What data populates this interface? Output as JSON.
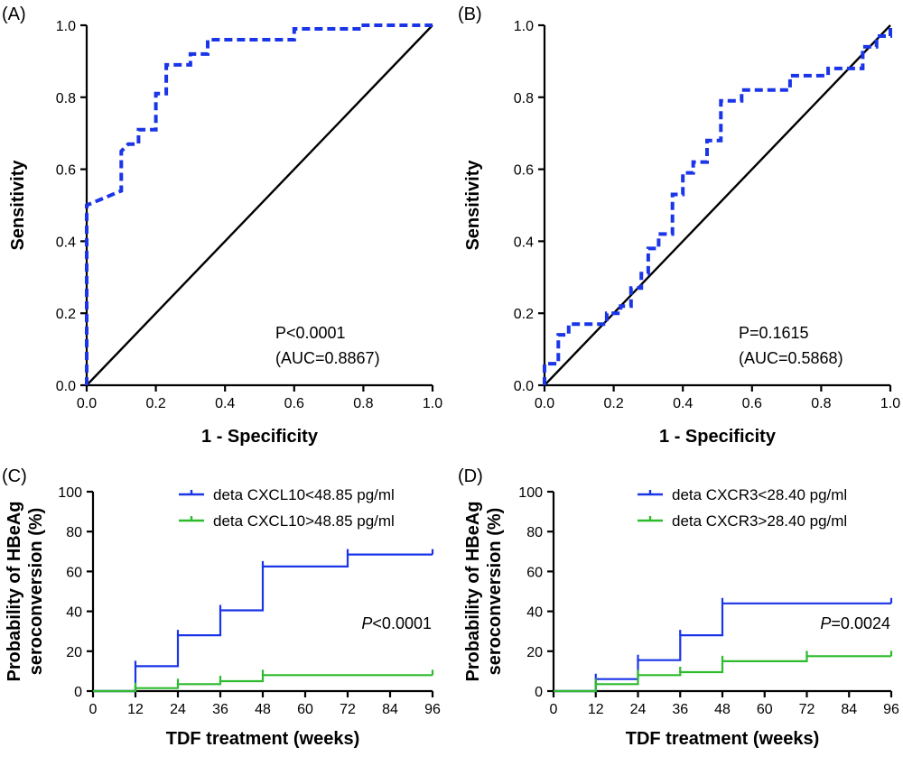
{
  "colors": {
    "roc_curve": "#1a35e8",
    "group_low": "#1a35e8",
    "group_high": "#2dbb2d",
    "axis": "#000000"
  },
  "chart_data": [
    {
      "panel": "(A)",
      "type": "line",
      "subtype": "roc",
      "xlabel": "1 - Specificity",
      "ylabel": "Sensitivity",
      "xlim": [
        0,
        1
      ],
      "ylim": [
        0,
        1
      ],
      "xticks": [
        "0.0",
        "0.2",
        "0.4",
        "0.6",
        "0.8",
        "1.0"
      ],
      "yticks": [
        "0.0",
        "0.2",
        "0.4",
        "0.6",
        "0.8",
        "1.0"
      ],
      "annotation": [
        "P<0.0001",
        "(AUC=0.8867)"
      ],
      "reference_line": [
        [
          0,
          0
        ],
        [
          1,
          1
        ]
      ],
      "points": [
        [
          0,
          0
        ],
        [
          0,
          0.5
        ],
        [
          0.1,
          0.54
        ],
        [
          0.1,
          0.65
        ],
        [
          0.12,
          0.67
        ],
        [
          0.15,
          0.67
        ],
        [
          0.15,
          0.71
        ],
        [
          0.2,
          0.71
        ],
        [
          0.2,
          0.81
        ],
        [
          0.23,
          0.81
        ],
        [
          0.23,
          0.89
        ],
        [
          0.3,
          0.89
        ],
        [
          0.3,
          0.92
        ],
        [
          0.35,
          0.92
        ],
        [
          0.35,
          0.96
        ],
        [
          0.6,
          0.96
        ],
        [
          0.6,
          0.99
        ],
        [
          0.8,
          0.99
        ],
        [
          0.8,
          1.0
        ],
        [
          1,
          1
        ]
      ]
    },
    {
      "panel": "(B)",
      "type": "line",
      "subtype": "roc",
      "xlabel": "1 - Specificity",
      "ylabel": "Sensitivity",
      "xlim": [
        0,
        1
      ],
      "ylim": [
        0,
        1
      ],
      "xticks": [
        "0.0",
        "0.2",
        "0.4",
        "0.6",
        "0.8",
        "1.0"
      ],
      "yticks": [
        "0.0",
        "0.2",
        "0.4",
        "0.6",
        "0.8",
        "1.0"
      ],
      "annotation": [
        "P=0.1615",
        "(AUC=0.5868)"
      ],
      "reference_line": [
        [
          0,
          0
        ],
        [
          1,
          1
        ]
      ],
      "points": [
        [
          0,
          0
        ],
        [
          0,
          0.06
        ],
        [
          0.04,
          0.06
        ],
        [
          0.04,
          0.14
        ],
        [
          0.07,
          0.14
        ],
        [
          0.07,
          0.17
        ],
        [
          0.18,
          0.17
        ],
        [
          0.18,
          0.2
        ],
        [
          0.22,
          0.2
        ],
        [
          0.22,
          0.22
        ],
        [
          0.25,
          0.22
        ],
        [
          0.25,
          0.27
        ],
        [
          0.28,
          0.27
        ],
        [
          0.28,
          0.31
        ],
        [
          0.3,
          0.31
        ],
        [
          0.3,
          0.38
        ],
        [
          0.33,
          0.38
        ],
        [
          0.33,
          0.42
        ],
        [
          0.37,
          0.42
        ],
        [
          0.37,
          0.53
        ],
        [
          0.4,
          0.53
        ],
        [
          0.4,
          0.59
        ],
        [
          0.43,
          0.59
        ],
        [
          0.43,
          0.62
        ],
        [
          0.47,
          0.62
        ],
        [
          0.47,
          0.68
        ],
        [
          0.51,
          0.68
        ],
        [
          0.51,
          0.79
        ],
        [
          0.57,
          0.79
        ],
        [
          0.57,
          0.82
        ],
        [
          0.71,
          0.82
        ],
        [
          0.71,
          0.86
        ],
        [
          0.82,
          0.86
        ],
        [
          0.82,
          0.88
        ],
        [
          0.92,
          0.88
        ],
        [
          0.92,
          0.94
        ],
        [
          0.96,
          0.94
        ],
        [
          0.96,
          0.97
        ],
        [
          1.0,
          0.97
        ],
        [
          1.0,
          1.0
        ]
      ]
    },
    {
      "panel": "(C)",
      "type": "line",
      "subtype": "step",
      "xlabel": "TDF treatment (weeks)",
      "ylabel": [
        "Probability of HBeAg",
        "seroconversion (%)"
      ],
      "xlim": [
        0,
        96
      ],
      "ylim": [
        0,
        100
      ],
      "xticks": [
        "0",
        "12",
        "24",
        "36",
        "48",
        "60",
        "72",
        "84",
        "96"
      ],
      "yticks": [
        "0",
        "20",
        "40",
        "60",
        "80",
        "100"
      ],
      "annotation": {
        "p_label": "P",
        "p_value": "<0.0001"
      },
      "series": [
        {
          "name": "deta CXCL10<48.85 pg/ml",
          "color": "#1a35e8",
          "x": [
            0,
            12,
            24,
            36,
            48,
            72,
            96
          ],
          "y": [
            0,
            12.5,
            28,
            40.5,
            62.5,
            68.5,
            68.5
          ]
        },
        {
          "name": "deta CXCL10>48.85 pg/ml",
          "color": "#2dbb2d",
          "x": [
            0,
            12,
            24,
            36,
            48,
            96
          ],
          "y": [
            0,
            1.5,
            3.5,
            5,
            8,
            8
          ]
        }
      ]
    },
    {
      "panel": "(D)",
      "type": "line",
      "subtype": "step",
      "xlabel": "TDF treatment (weeks)",
      "ylabel": [
        "Probability of HBeAg",
        "seroconversion (%)"
      ],
      "xlim": [
        0,
        96
      ],
      "ylim": [
        0,
        100
      ],
      "xticks": [
        "0",
        "12",
        "24",
        "36",
        "48",
        "60",
        "72",
        "84",
        "96"
      ],
      "yticks": [
        "0",
        "20",
        "40",
        "60",
        "80",
        "100"
      ],
      "annotation": {
        "p_label": "P",
        "p_value": "=0.0024"
      },
      "series": [
        {
          "name": "deta CXCR3<28.40 pg/ml",
          "color": "#1a35e8",
          "x": [
            0,
            12,
            24,
            36,
            48,
            96
          ],
          "y": [
            0,
            6,
            15.5,
            28,
            44,
            44
          ]
        },
        {
          "name": "deta CXCR3>28.40 pg/ml",
          "color": "#2dbb2d",
          "x": [
            0,
            12,
            24,
            36,
            48,
            72,
            96
          ],
          "y": [
            0,
            3.5,
            8,
            9.5,
            15,
            17.5,
            17.5
          ]
        }
      ]
    }
  ]
}
